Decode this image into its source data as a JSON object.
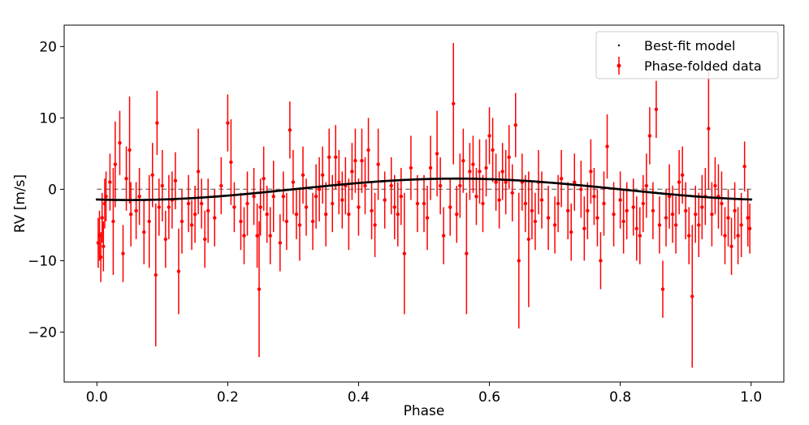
{
  "chart_data": {
    "type": "scatter",
    "title": "",
    "xlabel": "Phase",
    "ylabel": "RV [m/s]",
    "xlim": [
      -0.05,
      1.05
    ],
    "ylim": [
      -27,
      23
    ],
    "xticks": [
      0.0,
      0.2,
      0.4,
      0.6,
      0.8,
      1.0
    ],
    "xtick_labels": [
      "0.0",
      "0.2",
      "0.4",
      "0.6",
      "0.8",
      "1.0"
    ],
    "yticks": [
      -20,
      -10,
      0,
      10,
      20
    ],
    "ytick_labels": [
      "−20",
      "−10",
      "0",
      "10",
      "20"
    ],
    "grid": false,
    "legend_position": "top-right",
    "reference_line": {
      "y": 0,
      "style": "dashed",
      "color": "#808080"
    },
    "colors": {
      "data": "#ff0000",
      "model": "#000000",
      "reference": "#808080"
    },
    "series": [
      {
        "name": "Best-fit model",
        "kind": "line",
        "model": {
          "amplitude": 1.5,
          "phase_of_max": 0.55
        },
        "x": [
          0.0,
          0.05,
          0.1,
          0.15,
          0.2,
          0.25,
          0.3,
          0.35,
          0.4,
          0.45,
          0.5,
          0.55,
          0.6,
          0.65,
          0.7,
          0.75,
          0.8,
          0.85,
          0.9,
          0.95,
          1.0
        ],
        "y": [
          -1.5,
          -1.48,
          -1.38,
          -1.2,
          -0.93,
          -0.59,
          -0.2,
          0.2,
          0.59,
          0.93,
          1.2,
          1.5,
          1.38,
          1.2,
          0.93,
          0.59,
          0.2,
          -0.2,
          -0.59,
          -0.93,
          -1.4
        ]
      },
      {
        "name": "Phase-folded data",
        "kind": "errorbar",
        "x": [
          0.002,
          0.004,
          0.006,
          0.008,
          0.01,
          0.012,
          0.014,
          0.02,
          0.025,
          0.028,
          0.035,
          0.04,
          0.045,
          0.05,
          0.052,
          0.06,
          0.065,
          0.072,
          0.08,
          0.085,
          0.09,
          0.092,
          0.095,
          0.1,
          0.105,
          0.11,
          0.115,
          0.12,
          0.125,
          0.13,
          0.14,
          0.145,
          0.15,
          0.155,
          0.16,
          0.165,
          0.17,
          0.18,
          0.19,
          0.2,
          0.205,
          0.21,
          0.22,
          0.225,
          0.23,
          0.24,
          0.245,
          0.248,
          0.25,
          0.255,
          0.26,
          0.265,
          0.27,
          0.28,
          0.285,
          0.29,
          0.295,
          0.3,
          0.305,
          0.31,
          0.315,
          0.32,
          0.33,
          0.335,
          0.34,
          0.345,
          0.35,
          0.355,
          0.36,
          0.365,
          0.37,
          0.375,
          0.38,
          0.385,
          0.39,
          0.395,
          0.4,
          0.405,
          0.41,
          0.415,
          0.42,
          0.425,
          0.43,
          0.44,
          0.45,
          0.455,
          0.46,
          0.465,
          0.47,
          0.48,
          0.49,
          0.5,
          0.505,
          0.51,
          0.52,
          0.525,
          0.53,
          0.54,
          0.545,
          0.55,
          0.555,
          0.56,
          0.565,
          0.57,
          0.575,
          0.58,
          0.585,
          0.59,
          0.595,
          0.6,
          0.605,
          0.61,
          0.615,
          0.62,
          0.625,
          0.63,
          0.635,
          0.64,
          0.645,
          0.65,
          0.655,
          0.66,
          0.665,
          0.67,
          0.675,
          0.68,
          0.69,
          0.7,
          0.705,
          0.71,
          0.72,
          0.725,
          0.73,
          0.74,
          0.745,
          0.75,
          0.755,
          0.76,
          0.765,
          0.77,
          0.775,
          0.78,
          0.79,
          0.8,
          0.805,
          0.81,
          0.82,
          0.825,
          0.83,
          0.835,
          0.84,
          0.845,
          0.85,
          0.855,
          0.86,
          0.865,
          0.87,
          0.875,
          0.88,
          0.885,
          0.89,
          0.895,
          0.9,
          0.905,
          0.91,
          0.915,
          0.92,
          0.925,
          0.93,
          0.935,
          0.94,
          0.945,
          0.95,
          0.955,
          0.96,
          0.965,
          0.97,
          0.975,
          0.98,
          0.985,
          0.99,
          0.995,
          0.998
        ],
        "y": [
          -7.5,
          -6.5,
          -9.5,
          -4.0,
          -8.0,
          -2.0,
          -1.0,
          1.0,
          -4.5,
          3.5,
          6.5,
          -9.0,
          1.5,
          5.5,
          -3.5,
          -3.0,
          -1.0,
          -6.0,
          -4.5,
          2.0,
          -12.0,
          9.3,
          -2.5,
          0.5,
          -7.0,
          -2.5,
          -1.5,
          1.2,
          -11.5,
          -4.5,
          -2.0,
          -5.0,
          -3.5,
          2.5,
          -2.0,
          -7.0,
          -3.0,
          -4.0,
          0.5,
          9.3,
          3.8,
          -2.5,
          -4.5,
          -6.5,
          -2.0,
          -1.0,
          -6.5,
          -14.0,
          -2.5,
          1.5,
          -3.5,
          -6.5,
          -1.0,
          -7.5,
          -1.0,
          -4.5,
          8.3,
          1.0,
          -3.5,
          -5.0,
          2.0,
          -2.5,
          -4.5,
          -1.0,
          0.0,
          2.0,
          -3.5,
          4.5,
          -2.0,
          4.5,
          1.0,
          -1.5,
          0.5,
          -3.5,
          2.5,
          4.0,
          -2.5,
          4.0,
          0.5,
          5.5,
          -3.0,
          -5.0,
          3.5,
          -1.5,
          0.5,
          -2.5,
          -3.5,
          -1.0,
          -9.0,
          3.0,
          -2.0,
          -2.0,
          -4.0,
          3.0,
          5.0,
          0.5,
          -6.5,
          -2.5,
          12.0,
          -3.5,
          0.5,
          4.0,
          -9.0,
          2.5,
          3.5,
          -1.0,
          2.5,
          -2.0,
          3.0,
          7.5,
          5.5,
          1.0,
          -1.5,
          2.5,
          1.0,
          4.5,
          -0.5,
          9.0,
          -10.0,
          1.0,
          -2.0,
          -7.0,
          -3.0,
          -4.5,
          1.0,
          -1.5,
          -4.0,
          -5.0,
          -2.0,
          1.5,
          -3.0,
          -6.0,
          1.0,
          0.0,
          -5.5,
          -3.0,
          2.5,
          -1.0,
          -4.0,
          -10.0,
          -2.0,
          6.0,
          -3.5,
          -1.5,
          -4.5,
          -3.0,
          -2.5,
          -5.5,
          -6.5,
          -2.0,
          0.5,
          7.5,
          -3.0,
          11.2,
          -5.0,
          -14.0,
          -4.0,
          -1.0,
          -3.5,
          -5.0,
          1.0,
          2.0,
          -3.0,
          -6.5,
          -15.0,
          -3.5,
          -5.0,
          -2.5,
          -1.0,
          8.5,
          -3.5,
          0.5,
          -1.0,
          -2.0,
          -6.5,
          -4.0,
          -8.0,
          -3.0,
          -6.5,
          -5.0,
          3.2,
          -4.0,
          -5.5
        ],
        "yerr": [
          3.5,
          3.5,
          3.5,
          3.5,
          3.5,
          3.5,
          3.5,
          4.0,
          7.5,
          6.0,
          4.5,
          4.0,
          4.5,
          7.5,
          4.5,
          4.0,
          4.0,
          4.5,
          6.5,
          4.5,
          10.0,
          4.5,
          4.0,
          5.0,
          4.0,
          4.5,
          4.0,
          4.0,
          6.0,
          4.5,
          4.0,
          3.5,
          4.0,
          6.0,
          3.5,
          4.0,
          4.5,
          4.0,
          4.0,
          4.0,
          6.0,
          3.5,
          4.0,
          4.0,
          4.5,
          4.0,
          4.5,
          9.5,
          4.0,
          4.5,
          4.0,
          4.0,
          5.0,
          4.0,
          3.5,
          4.0,
          4.0,
          4.5,
          3.5,
          5.0,
          4.0,
          4.0,
          4.0,
          4.5,
          4.5,
          4.0,
          4.5,
          4.0,
          4.0,
          4.5,
          4.5,
          4.0,
          4.0,
          5.0,
          4.0,
          4.5,
          4.0,
          4.5,
          4.0,
          4.5,
          4.0,
          4.5,
          5.0,
          4.0,
          4.0,
          4.5,
          4.5,
          4.0,
          8.5,
          4.5,
          4.0,
          4.0,
          4.5,
          4.5,
          6.0,
          4.0,
          4.0,
          4.0,
          8.5,
          4.0,
          4.5,
          4.5,
          8.5,
          4.0,
          4.0,
          4.0,
          4.5,
          4.0,
          4.0,
          4.0,
          4.5,
          4.0,
          4.0,
          4.0,
          4.5,
          4.5,
          4.0,
          4.5,
          9.5,
          4.0,
          4.0,
          9.5,
          4.0,
          4.0,
          4.5,
          4.0,
          4.5,
          4.0,
          4.0,
          4.0,
          4.0,
          4.0,
          4.0,
          4.0,
          4.5,
          4.0,
          4.5,
          4.0,
          4.0,
          4.0,
          4.5,
          4.5,
          4.5,
          4.0,
          4.5,
          4.0,
          4.0,
          4.5,
          4.0,
          4.0,
          4.5,
          4.0,
          4.0,
          4.0,
          4.0,
          4.0,
          4.0,
          4.5,
          4.0,
          4.0,
          4.5,
          4.0,
          4.0,
          4.0,
          10.0,
          4.0,
          4.5,
          4.5,
          4.0,
          8.5,
          4.5,
          4.0,
          4.5,
          4.5,
          4.0,
          4.0,
          4.0,
          4.0,
          4.0,
          4.5,
          3.5,
          4.0,
          3.5
        ]
      }
    ]
  }
}
